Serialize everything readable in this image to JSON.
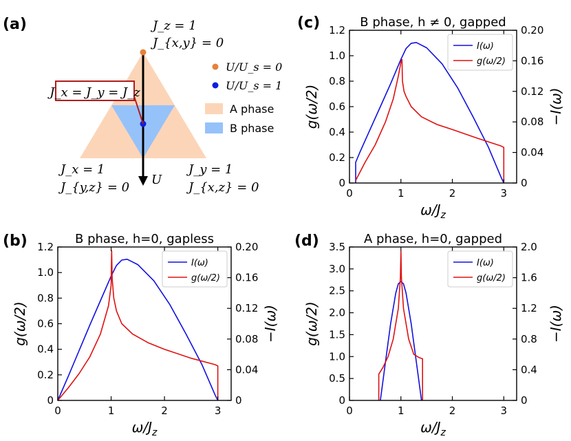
{
  "panel_a": {
    "label": "(a)",
    "top_vertex": [
      "J_z = 1",
      "J_{x,y} = 0"
    ],
    "left_vertex": [
      "J_x = 1",
      "J_{y,z} = 0"
    ],
    "right_vertex": [
      "J_y = 1",
      "J_{x,z} = 0"
    ],
    "iso_point": "J_x = J_y = J_z",
    "arrow_label": "U",
    "legend": [
      {
        "text": "U/U_s = 0",
        "color": "#e8803a",
        "kind": "dot"
      },
      {
        "text": "U/U_s = 1",
        "color": "#0a1ee0",
        "kind": "dot"
      },
      {
        "text": "A phase",
        "color": "#fcd5b8",
        "kind": "patch"
      },
      {
        "text": "B phase",
        "color": "#96c2fa",
        "kind": "patch"
      }
    ]
  },
  "chart_data": [
    {
      "id": "c",
      "label": "(c)",
      "type": "line",
      "title": "B phase, h ≠ 0, gapped",
      "xlabel": "ω/J_z",
      "ylabel_left": "g(ω/2)",
      "ylabel_right": "−I(ω)",
      "xlim": [
        0,
        3.25
      ],
      "ylim_left": [
        0,
        1.2
      ],
      "ylim_right": [
        0,
        0.2
      ],
      "xticks": [
        "0",
        "1",
        "2",
        "3"
      ],
      "yticks_left": [
        "0",
        "0.2",
        "0.4",
        "0.6",
        "0.8",
        "1.0",
        "1.2"
      ],
      "yticks_right": [
        "0",
        "0.04",
        "0.08",
        "0.12",
        "0.16",
        "0.20"
      ],
      "legend": [
        "I(ω)",
        "g(ω/2)"
      ],
      "series": [
        {
          "name": "I(ω)",
          "color": "#1010e0",
          "axis": "right",
          "x": [
            0.12,
            0.12,
            0.2,
            0.4,
            0.6,
            0.8,
            1.0,
            1.1,
            1.2,
            1.3,
            1.5,
            1.8,
            2.1,
            2.4,
            2.7,
            2.95,
            3.0
          ],
          "y": [
            0.0,
            0.027,
            0.04,
            0.07,
            0.1,
            0.13,
            0.162,
            0.176,
            0.183,
            0.184,
            0.177,
            0.156,
            0.125,
            0.087,
            0.047,
            0.007,
            0.0
          ]
        },
        {
          "name": "g(ω/2)",
          "color": "#e01010",
          "axis": "left",
          "x": [
            0.12,
            0.3,
            0.5,
            0.7,
            0.85,
            0.95,
            1.0,
            1.02,
            1.03,
            1.06,
            1.1,
            1.2,
            1.4,
            1.7,
            2.0,
            2.5,
            2.95,
            3.0,
            3.0
          ],
          "y": [
            0.02,
            0.16,
            0.3,
            0.48,
            0.66,
            0.84,
            0.95,
            0.97,
            0.8,
            0.72,
            0.68,
            0.6,
            0.52,
            0.46,
            0.42,
            0.35,
            0.29,
            0.28,
            0.0
          ]
        }
      ]
    },
    {
      "id": "b",
      "label": "(b)",
      "type": "line",
      "title": "B phase, h=0, gapless",
      "xlabel": "ω/J_z",
      "ylabel_left": "g(ω/2)",
      "ylabel_right": "−I(ω)",
      "xlim": [
        0,
        3.25
      ],
      "ylim_left": [
        0,
        1.2
      ],
      "ylim_right": [
        0,
        0.2
      ],
      "xticks": [
        "0",
        "1",
        "2",
        "3"
      ],
      "yticks_left": [
        "0",
        "0.2",
        "0.4",
        "0.6",
        "0.8",
        "1.0",
        "1.2"
      ],
      "yticks_right": [
        "0",
        "0.04",
        "0.08",
        "0.12",
        "0.16",
        "0.20"
      ],
      "legend": [
        "I(ω)",
        "g(ω/2)"
      ],
      "series": [
        {
          "name": "I(ω)",
          "color": "#1010e0",
          "axis": "right",
          "x": [
            0.0,
            0.2,
            0.4,
            0.6,
            0.8,
            1.0,
            1.1,
            1.2,
            1.3,
            1.5,
            1.8,
            2.1,
            2.4,
            2.7,
            2.95,
            3.0
          ],
          "y": [
            0.0,
            0.032,
            0.065,
            0.098,
            0.13,
            0.162,
            0.176,
            0.183,
            0.184,
            0.177,
            0.156,
            0.125,
            0.087,
            0.047,
            0.007,
            0.0
          ]
        },
        {
          "name": "g(ω/2)",
          "color": "#e01010",
          "axis": "left",
          "x": [
            0.0,
            0.2,
            0.4,
            0.6,
            0.8,
            0.95,
            1.0,
            1.01,
            1.02,
            1.05,
            1.1,
            1.2,
            1.4,
            1.7,
            2.0,
            2.5,
            2.95,
            3.0,
            3.0
          ],
          "y": [
            0.0,
            0.1,
            0.21,
            0.34,
            0.52,
            0.74,
            0.9,
            1.17,
            0.95,
            0.8,
            0.7,
            0.6,
            0.52,
            0.45,
            0.4,
            0.33,
            0.28,
            0.27,
            0.0
          ]
        }
      ]
    },
    {
      "id": "d",
      "label": "(d)",
      "type": "line",
      "title": "A phase, h=0, gapped",
      "xlabel": "ω/J_z",
      "ylabel_left": "g(ω/2)",
      "ylabel_right": "−I(ω)",
      "xlim": [
        0,
        3.25
      ],
      "ylim_left": [
        0,
        3.5
      ],
      "ylim_right": [
        0,
        2.0
      ],
      "xticks": [
        "0",
        "1",
        "2",
        "3"
      ],
      "yticks_left": [
        "0",
        "0.5",
        "1.0",
        "1.5",
        "2.0",
        "2.5",
        "3.0",
        "3.5"
      ],
      "yticks_right": [
        "0",
        "0.4",
        "0.8",
        "1.2",
        "1.6",
        "2.0"
      ],
      "legend": [
        "I(ω)",
        "g(ω/2)"
      ],
      "series": [
        {
          "name": "I(ω)",
          "color": "#1010e0",
          "axis": "right",
          "x": [
            0.6,
            0.7,
            0.8,
            0.9,
            0.95,
            1.0,
            1.05,
            1.1,
            1.2,
            1.3,
            1.4
          ],
          "y": [
            0.0,
            0.5,
            1.0,
            1.4,
            1.52,
            1.55,
            1.52,
            1.4,
            1.0,
            0.5,
            0.0
          ]
        },
        {
          "name": "g(ω/2)",
          "color": "#e01010",
          "axis": "left",
          "x": [
            0.57,
            0.57,
            0.65,
            0.75,
            0.85,
            0.95,
            0.99,
            1.0,
            1.01,
            1.05,
            1.15,
            1.25,
            1.35,
            1.42,
            1.42
          ],
          "y": [
            0.0,
            0.6,
            0.75,
            1.0,
            1.4,
            2.1,
            2.8,
            3.4,
            2.8,
            2.1,
            1.4,
            1.05,
            0.98,
            0.95,
            0.0
          ]
        }
      ]
    }
  ]
}
